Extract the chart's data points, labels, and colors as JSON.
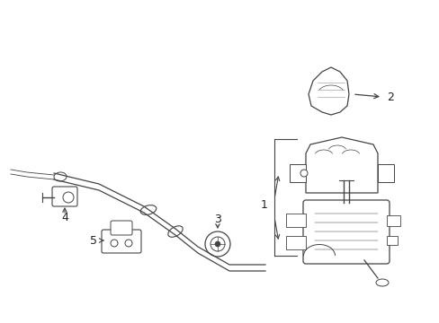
{
  "background_color": "#ffffff",
  "fig_width": 4.89,
  "fig_height": 3.6,
  "dpi": 100,
  "image_data": "target_embedded"
}
